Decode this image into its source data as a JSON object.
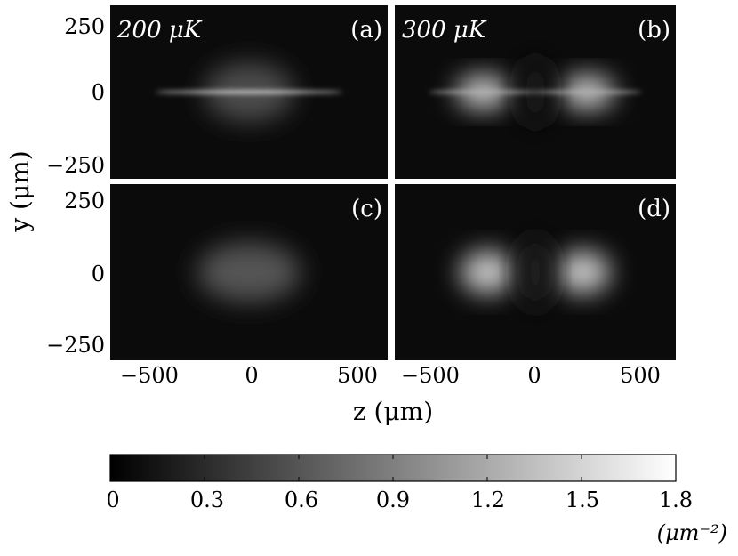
{
  "chart_data": {
    "type": "heatmap",
    "colormap": "gray",
    "xlabel": "z (μm)",
    "ylabel": "y (μm)",
    "xlim": [
      -620,
      620
    ],
    "ylim": [
      -330,
      330
    ],
    "xticks": [
      "−500",
      "0",
      "500"
    ],
    "yticks": [
      "250",
      "0",
      "−250"
    ],
    "panels": [
      {
        "label": "(a)",
        "temperature": "200 μK",
        "blobs": [
          {
            "type": "ellipse",
            "z0": 0,
            "y0": 0,
            "sz": 200,
            "sy": 110,
            "peak": 0.55
          },
          {
            "type": "line",
            "z0": 0,
            "y0": 0,
            "sz": 420,
            "sy": 5,
            "peak": 1.8
          }
        ]
      },
      {
        "label": "(b)",
        "temperature": "300 μK",
        "blobs": [
          {
            "type": "ellipse",
            "z0": -230,
            "y0": 0,
            "sz": 120,
            "sy": 65,
            "peak": 1.4
          },
          {
            "type": "ellipse",
            "z0": 230,
            "y0": 0,
            "sz": 120,
            "sy": 65,
            "peak": 1.4
          },
          {
            "type": "ellipse",
            "z0": 0,
            "y0": 0,
            "sz": 80,
            "sy": 140,
            "peak": 0.15
          },
          {
            "type": "line",
            "z0": -230,
            "y0": 0,
            "sz": 240,
            "sy": 6,
            "peak": 1.3
          },
          {
            "type": "line",
            "z0": 230,
            "y0": 0,
            "sz": 240,
            "sy": 6,
            "peak": 1.3
          }
        ]
      },
      {
        "label": "(c)",
        "temperature": "",
        "blobs": [
          {
            "type": "ellipse",
            "z0": 0,
            "y0": 0,
            "sz": 230,
            "sy": 110,
            "peak": 0.6
          }
        ]
      },
      {
        "label": "(d)",
        "temperature": "",
        "blobs": [
          {
            "type": "ellipse",
            "z0": -210,
            "y0": 0,
            "sz": 120,
            "sy": 80,
            "peak": 1.4
          },
          {
            "type": "ellipse",
            "z0": 210,
            "y0": 0,
            "sz": 120,
            "sy": 80,
            "peak": 1.4
          },
          {
            "type": "ellipse",
            "z0": 0,
            "y0": 0,
            "sz": 80,
            "sy": 140,
            "peak": 0.2
          }
        ]
      }
    ],
    "colorbar": {
      "min": 0,
      "max": 1.8,
      "ticks": [
        "0",
        "0.3",
        "0.6",
        "0.9",
        "1.2",
        "1.5",
        "1.8"
      ],
      "unit": "(μm⁻²)"
    }
  }
}
